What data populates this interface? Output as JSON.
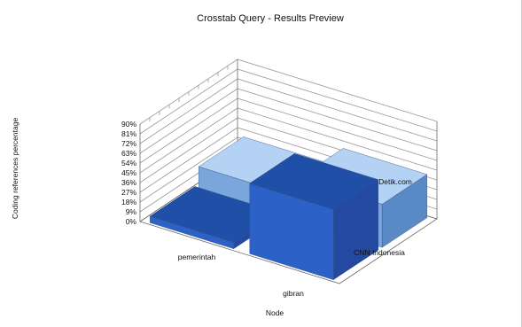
{
  "chart_data": {
    "type": "bar",
    "title": "Crosstab Query - Results Preview",
    "xlabel": "Node",
    "ylabel": "Coding references percentage",
    "ytick_labels": [
      "0%",
      "9%",
      "18%",
      "27%",
      "36%",
      "45%",
      "54%",
      "63%",
      "72%",
      "81%",
      "90%"
    ],
    "ylim": [
      0,
      90
    ],
    "categories": [
      "pemerintah",
      "gibran"
    ],
    "series": [
      {
        "name": "Detik.com",
        "values": [
          22,
          40
        ]
      },
      {
        "name": "CNN Indonesia",
        "values": [
          6,
          65
        ]
      }
    ],
    "colors": {
      "detik_front": "#7aa6dc",
      "detik_top": "#b3d2f4",
      "detik_side": "#5a8ac6",
      "cnn_front": "#2c62c8",
      "cnn_top": "#1f4fa6",
      "cnn_side": "#234aa0"
    },
    "grid": true
  }
}
